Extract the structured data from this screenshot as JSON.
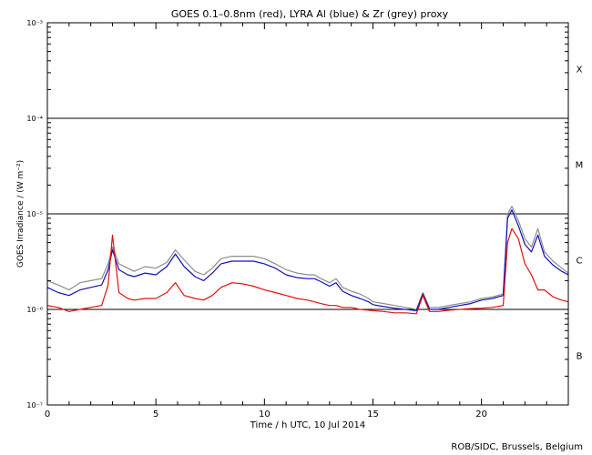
{
  "credit": "ROB/SIDC, Brussels, Belgium",
  "chart_data": {
    "type": "line",
    "title": "GOES 0.1–0.8nm (red), LYRA Al (blue) & Zr (grey) proxy",
    "xlabel": "Time / h UTC, 10 Jul 2014",
    "ylabel": "GOES Irradiance / (W m⁻²)",
    "y_scale": "log",
    "xlim": [
      0,
      24
    ],
    "ylim": [
      1e-07,
      0.001
    ],
    "grid": false,
    "x_ticks": [
      0,
      5,
      10,
      15,
      20
    ],
    "y_ticks": [
      {
        "value": 1e-07,
        "label": "10⁻⁷"
      },
      {
        "value": 1e-06,
        "label": "10⁻⁶"
      },
      {
        "value": 1e-05,
        "label": "10⁻⁵"
      },
      {
        "value": 0.0001,
        "label": "10⁻⁴"
      },
      {
        "value": 0.001,
        "label": "10⁻³"
      }
    ],
    "reference_lines": [
      1e-06,
      1e-05,
      0.0001
    ],
    "flare_classes": [
      {
        "label": "B",
        "value": 3.3e-07
      },
      {
        "label": "C",
        "value": 3.3e-06
      },
      {
        "label": "M",
        "value": 3.3e-05
      },
      {
        "label": "X",
        "value": 0.00033
      }
    ],
    "series": [
      {
        "name": "LYRA Zr proxy",
        "color": "#8c8c8c",
        "x": [
          0,
          0.5,
          1,
          1.5,
          2,
          2.5,
          2.8,
          3,
          3.3,
          3.7,
          4,
          4.5,
          5,
          5.5,
          5.9,
          6.3,
          6.8,
          7.2,
          7.6,
          8,
          8.5,
          9,
          9.5,
          10,
          10.5,
          11,
          11.5,
          12,
          12.3,
          12.6,
          13,
          13.3,
          13.6,
          14,
          14.4,
          14.8,
          15,
          15.5,
          16,
          16.5,
          17,
          17.3,
          17.6,
          18,
          18.5,
          19,
          19.5,
          20,
          20.5,
          21,
          21.2,
          21.4,
          21.7,
          22,
          22.3,
          22.6,
          22.9,
          23.3,
          23.7,
          24
        ],
        "y": [
          2e-06,
          1.8e-06,
          1.6e-06,
          1.9e-06,
          2e-06,
          2.1e-06,
          3e-06,
          4.5e-06,
          3e-06,
          2.7e-06,
          2.5e-06,
          2.8e-06,
          2.7e-06,
          3.1e-06,
          4.2e-06,
          3.3e-06,
          2.5e-06,
          2.3e-06,
          2.7e-06,
          3.4e-06,
          3.6e-06,
          3.6e-06,
          3.6e-06,
          3.4e-06,
          3e-06,
          2.6e-06,
          2.4e-06,
          2.3e-06,
          2.3e-06,
          2.1e-06,
          1.9e-06,
          2.1e-06,
          1.7e-06,
          1.55e-06,
          1.45e-06,
          1.3e-06,
          1.2e-06,
          1.15e-06,
          1.1e-06,
          1.05e-06,
          1e-06,
          1.5e-06,
          1.05e-06,
          1.05e-06,
          1.1e-06,
          1.15e-06,
          1.2e-06,
          1.3e-06,
          1.35e-06,
          1.45e-06,
          1e-05,
          1.2e-05,
          8.5e-06,
          5.5e-06,
          4.5e-06,
          7e-06,
          4e-06,
          3.2e-06,
          2.7e-06,
          2.4e-06
        ]
      },
      {
        "name": "LYRA Al proxy",
        "color": "#1010c0",
        "x": [
          0,
          0.5,
          1,
          1.5,
          2,
          2.5,
          2.8,
          3,
          3.3,
          3.7,
          4,
          4.5,
          5,
          5.5,
          5.9,
          6.3,
          6.8,
          7.2,
          7.6,
          8,
          8.5,
          9,
          9.5,
          10,
          10.5,
          11,
          11.5,
          12,
          12.3,
          12.6,
          13,
          13.3,
          13.6,
          14,
          14.4,
          14.8,
          15,
          15.5,
          16,
          16.5,
          17,
          17.3,
          17.6,
          18,
          18.5,
          19,
          19.5,
          20,
          20.5,
          21,
          21.2,
          21.4,
          21.7,
          22,
          22.3,
          22.6,
          22.9,
          23.3,
          23.7,
          24
        ],
        "y": [
          1.7e-06,
          1.5e-06,
          1.4e-06,
          1.6e-06,
          1.7e-06,
          1.8e-06,
          2.6e-06,
          4.2e-06,
          2.6e-06,
          2.3e-06,
          2.2e-06,
          2.4e-06,
          2.3e-06,
          2.8e-06,
          3.8e-06,
          2.8e-06,
          2.2e-06,
          2e-06,
          2.4e-06,
          3e-06,
          3.2e-06,
          3.2e-06,
          3.2e-06,
          3e-06,
          2.7e-06,
          2.3e-06,
          2.15e-06,
          2.1e-06,
          2.1e-06,
          1.95e-06,
          1.75e-06,
          1.9e-06,
          1.55e-06,
          1.4e-06,
          1.3e-06,
          1.2e-06,
          1.12e-06,
          1.07e-06,
          1.03e-06,
          1e-06,
          9.7e-07,
          1.45e-06,
          1e-06,
          1e-06,
          1.05e-06,
          1.1e-06,
          1.15e-06,
          1.25e-06,
          1.3e-06,
          1.4e-06,
          9e-06,
          1.1e-05,
          7.5e-06,
          4.8e-06,
          4e-06,
          6e-06,
          3.6e-06,
          2.9e-06,
          2.5e-06,
          2.3e-06
        ]
      },
      {
        "name": "GOES 0.1–0.8nm",
        "color": "#e01010",
        "x": [
          0,
          0.5,
          1,
          1.5,
          2,
          2.5,
          2.8,
          3,
          3.3,
          3.7,
          4,
          4.5,
          5,
          5.5,
          5.9,
          6.3,
          6.8,
          7.2,
          7.6,
          8,
          8.5,
          9,
          9.5,
          10,
          10.5,
          11,
          11.5,
          12,
          12.3,
          12.6,
          13,
          13.3,
          13.6,
          14,
          14.4,
          14.8,
          15,
          15.5,
          16,
          16.5,
          17,
          17.3,
          17.6,
          18,
          18.5,
          19,
          19.5,
          20,
          20.5,
          21,
          21.2,
          21.4,
          21.7,
          22,
          22.3,
          22.6,
          22.9,
          23.3,
          23.7,
          24
        ],
        "y": [
          1.1e-06,
          1.05e-06,
          9.5e-07,
          1e-06,
          1.05e-06,
          1.1e-06,
          1.8e-06,
          6e-06,
          1.5e-06,
          1.3e-06,
          1.25e-06,
          1.3e-06,
          1.3e-06,
          1.5e-06,
          1.9e-06,
          1.4e-06,
          1.3e-06,
          1.25e-06,
          1.4e-06,
          1.7e-06,
          1.9e-06,
          1.85e-06,
          1.75e-06,
          1.6e-06,
          1.5e-06,
          1.4e-06,
          1.3e-06,
          1.25e-06,
          1.2e-06,
          1.15e-06,
          1.1e-06,
          1.1e-06,
          1.05e-06,
          1.05e-06,
          1e-06,
          9.8e-07,
          9.7e-07,
          9.5e-07,
          9.2e-07,
          9.2e-07,
          9e-07,
          1.4e-06,
          9.5e-07,
          9.5e-07,
          9.8e-07,
          1e-06,
          1.02e-06,
          1.03e-06,
          1.05e-06,
          1.1e-06,
          5e-06,
          7e-06,
          5.5e-06,
          3e-06,
          2.3e-06,
          1.6e-06,
          1.6e-06,
          1.35e-06,
          1.25e-06,
          1.2e-06
        ]
      }
    ]
  }
}
